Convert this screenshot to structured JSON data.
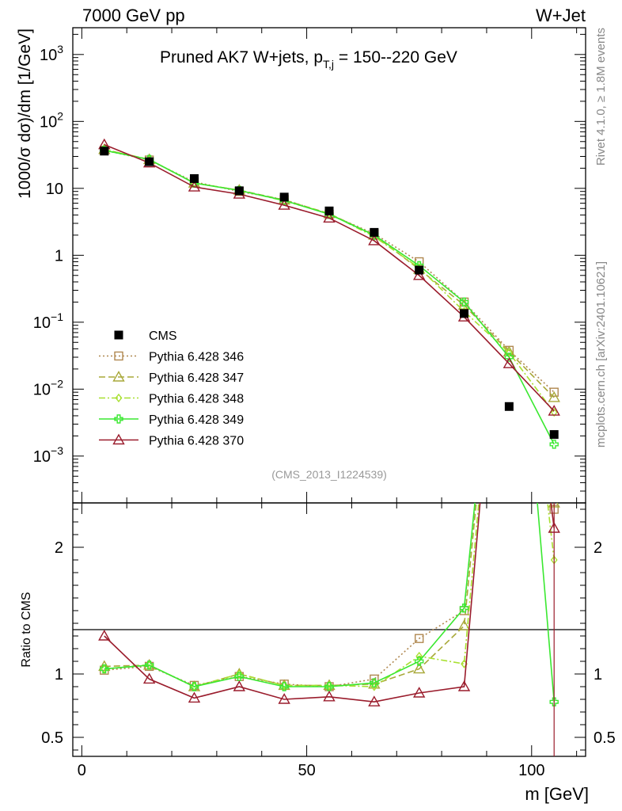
{
  "header": {
    "left": "7000 GeV pp",
    "right": "W+Jet"
  },
  "side_labels": {
    "rivet": "Rivet 4.1.0, ≥ 1.8M events",
    "mcplots": "mcplots.cern.ch [arXiv:2401.10621]"
  },
  "chart_data": {
    "type": "line",
    "title_main": "Pruned AK7 W+jets, p",
    "title_sub": "T,j",
    "title_rest": " = 150--220 GeV",
    "analysis_id": "(CMS_2013_I1224539)",
    "ylabel_main": "1000/σ  dσ)/dm [1/GeV]",
    "ylabel_ratio": "Ratio to CMS",
    "xlabel": "m [GeV]",
    "xlim": [
      -2,
      112
    ],
    "ylim_main_log10": [
      -3.7,
      3.4
    ],
    "ylim_ratio": [
      0.35,
      2.35
    ],
    "x_ticks": [
      {
        "v": 0,
        "label": "0"
      },
      {
        "v": 50,
        "label": "50"
      },
      {
        "v": 100,
        "label": "100"
      }
    ],
    "main_y_ticks": [
      {
        "exp": 3,
        "label": "10",
        "sup": "3"
      },
      {
        "exp": 2,
        "label": "10",
        "sup": "2"
      },
      {
        "exp": 1,
        "label": "10",
        "sup": ""
      },
      {
        "exp": 0,
        "label": "1",
        "sup": ""
      },
      {
        "exp": -1,
        "label": "10",
        "sup": "−1"
      },
      {
        "exp": -2,
        "label": "10",
        "sup": "−2"
      },
      {
        "exp": -3,
        "label": "10",
        "sup": "−3"
      }
    ],
    "ratio_y_ticks": [
      {
        "v": 0.5,
        "label": "0.5"
      },
      {
        "v": 1,
        "label": "1"
      },
      {
        "v": 2,
        "label": "2"
      }
    ],
    "x": [
      5,
      15,
      25,
      35,
      45,
      55,
      65,
      75,
      85,
      95,
      105
    ],
    "cms": {
      "name": "CMS",
      "color": "#000000",
      "values": [
        36,
        25,
        14,
        9.2,
        7.4,
        4.6,
        2.2,
        0.6,
        0.135,
        0.0055,
        0.0021
      ]
    },
    "series": [
      {
        "name": "Pythia 6.428 346",
        "color": "#b08850",
        "marker": "square",
        "dash": "2,3",
        "values": [
          37,
          26.5,
          12.5,
          9.0,
          6.8,
          4.1,
          2.1,
          0.8,
          0.2,
          0.038,
          0.009
        ],
        "ratio": [
          1.03,
          1.06,
          0.91,
          0.98,
          0.92,
          0.9,
          0.96,
          1.28,
          1.5,
          5,
          2.3
        ]
      },
      {
        "name": "Pythia 6.428 347",
        "color": "#a8a838",
        "marker": "triangle",
        "dash": "8,4",
        "values": [
          38,
          27,
          12.0,
          9.4,
          6.7,
          4.2,
          2.0,
          0.62,
          0.18,
          0.036,
          0.0075
        ],
        "ratio": [
          1.06,
          1.07,
          0.9,
          1.0,
          0.91,
          0.91,
          0.92,
          1.04,
          1.38,
          5,
          2.35
        ]
      },
      {
        "name": "Pythia 6.428 348",
        "color": "#a8e030",
        "marker": "diamond",
        "dash": "8,3,2,3",
        "values": [
          38,
          27,
          12.0,
          9.4,
          6.5,
          4.2,
          1.9,
          0.65,
          0.145,
          0.035,
          0.0045
        ],
        "ratio": [
          1.04,
          1.07,
          0.9,
          1.0,
          0.91,
          0.91,
          0.9,
          1.14,
          1.08,
          5,
          1.9
        ]
      },
      {
        "name": "Pythia 6.428 349",
        "color": "#3ae830",
        "marker": "cross",
        "dash": "",
        "values": [
          37,
          27,
          12.0,
          9.3,
          6.6,
          4.1,
          2.0,
          0.7,
          0.2,
          0.03,
          0.0015
        ],
        "ratio": [
          1.04,
          1.07,
          0.9,
          0.98,
          0.9,
          0.9,
          0.93,
          1.1,
          1.52,
          5,
          0.78
        ]
      },
      {
        "name": "Pythia 6.428 370",
        "color": "#9a1c2c",
        "marker": "triangle",
        "dash": "",
        "values": [
          45,
          24,
          10.5,
          8.2,
          5.6,
          3.6,
          1.65,
          0.5,
          0.12,
          0.024,
          0.0047
        ],
        "ratio": [
          1.3,
          0.96,
          0.81,
          0.9,
          0.8,
          0.82,
          0.78,
          0.85,
          0.9,
          5,
          2.15
        ]
      }
    ]
  }
}
